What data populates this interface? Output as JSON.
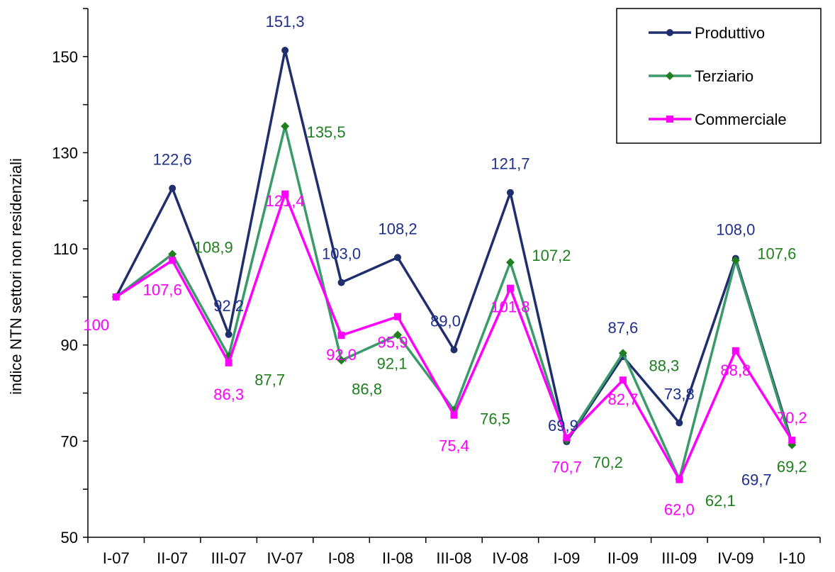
{
  "chart_data": {
    "type": "line",
    "title": "",
    "xlabel": "",
    "ylabel": "indice NTN settori non residenziali",
    "ylim": [
      50,
      160
    ],
    "yticks": [
      50,
      70,
      90,
      110,
      130,
      150
    ],
    "categories": [
      "I-07",
      "II-07",
      "III-07",
      "IV-07",
      "I-08",
      "II-08",
      "III-08",
      "IV-08",
      "I-09",
      "II-09",
      "III-09",
      "IV-09",
      "I-10"
    ],
    "grid": false,
    "legend_position": "top-right",
    "series": [
      {
        "name": "Produttivo",
        "color": "#1f2f6e",
        "marker": "circle",
        "values": [
          100,
          122.6,
          92.2,
          151.3,
          103.0,
          108.2,
          89.0,
          121.7,
          69.9,
          87.6,
          73.8,
          108.0,
          69.7
        ],
        "labels": [
          "",
          "122,6",
          "92,2",
          "151,3",
          "103,0",
          "108,2",
          "89,0",
          "121,7",
          "69,9",
          "87,6",
          "73,8",
          "108,0",
          "69,7"
        ]
      },
      {
        "name": "Terziario",
        "color": "#3a9a6a",
        "label_color": "#1f7f1f",
        "marker": "diamond",
        "values": [
          100,
          108.9,
          87.7,
          135.5,
          86.8,
          92.1,
          76.5,
          107.2,
          70.2,
          88.3,
          62.1,
          107.6,
          69.2
        ],
        "labels": [
          "",
          "108,9",
          "87,7",
          "135,5",
          "86,8",
          "92,1",
          "76,5",
          "107,2",
          "70,2",
          "88,3",
          "62,1",
          "107,6",
          "69,2"
        ]
      },
      {
        "name": "Commerciale",
        "color": "#ff00ff",
        "marker": "square",
        "values": [
          100,
          107.6,
          86.3,
          121.4,
          92.0,
          95.9,
          75.4,
          101.8,
          70.7,
          82.7,
          62.0,
          88.8,
          70.2
        ],
        "labels": [
          "100",
          "107,6",
          "86,3",
          "121,4",
          "92,0",
          "95,9",
          "75,4",
          "101,8",
          "70,7",
          "82,7",
          "62,0",
          "88,8",
          "70,2"
        ]
      }
    ]
  }
}
